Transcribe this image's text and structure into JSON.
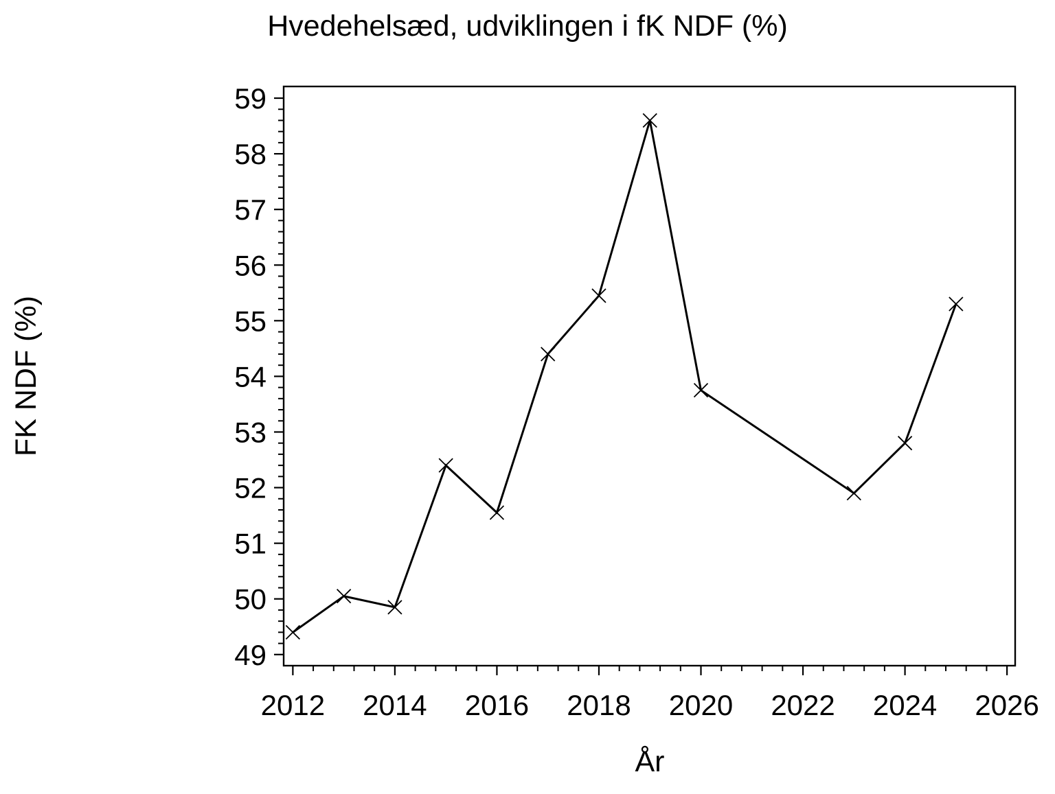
{
  "chart_data": {
    "type": "line",
    "title": "Hvedehelsæd, udviklingen i fK NDF (%)",
    "xlabel": "År",
    "ylabel": "FK NDF (%)",
    "x": [
      2012,
      2013,
      2014,
      2015,
      2016,
      2017,
      2018,
      2019,
      2020,
      2023,
      2024,
      2025
    ],
    "y": [
      49.4,
      50.05,
      49.85,
      52.4,
      51.55,
      54.4,
      55.45,
      58.6,
      53.75,
      51.9,
      52.8,
      55.3
    ],
    "marker": "x",
    "line_color": "#000000",
    "background_color": "#ffffff",
    "xlim": [
      2011.82,
      2026.16
    ],
    "ylim": [
      48.8,
      59.21
    ],
    "xticks": [
      2012,
      2014,
      2016,
      2018,
      2020,
      2022,
      2024,
      2026
    ],
    "yticks": [
      49,
      50,
      51,
      52,
      53,
      54,
      55,
      56,
      57,
      58,
      59
    ],
    "x_minor_step": 0.4,
    "y_minor_step": 0.2,
    "grid": false,
    "legend": false
  }
}
